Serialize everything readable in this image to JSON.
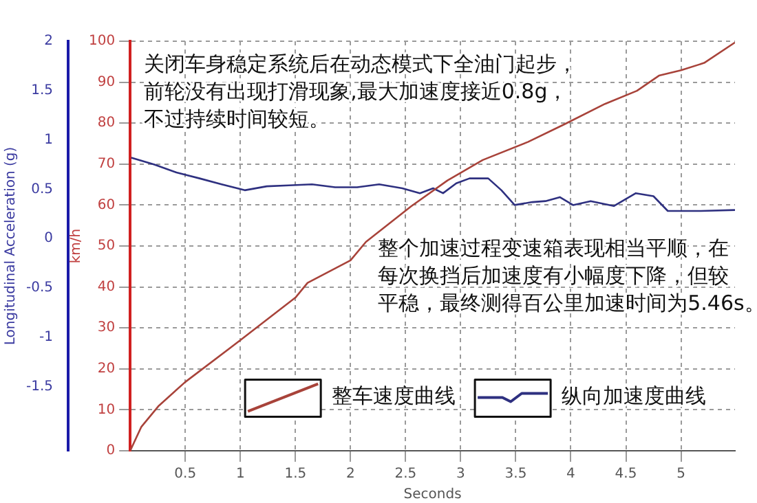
{
  "chart_data": {
    "type": "line",
    "xlabel": "Seconds",
    "ylabel": "km/h",
    "y2label": "Longitudinal Acceleration (g)",
    "annotations": [
      "关闭车身稳定系统后在动态模式下全油门起步，前轮没有出现打滑现象,最大加速度接近0.8g，不过持续时间较短。",
      "整个加速过程变速箱表现相当平顺，在每次换挡后加速度有小幅度下降，但较平稳，最终测得百公里加速时间为5.46s。"
    ],
    "series": [
      {
        "name": "整车速度曲线",
        "color": "#a8433a",
        "x": [
          0,
          0.1,
          0.26,
          0.5,
          1.0,
          1.5,
          1.61,
          2.0,
          2.14,
          2.55,
          2.88,
          3.2,
          3.61,
          3.94,
          4.31,
          4.6,
          4.8,
          5.0,
          5.21,
          5.49
        ],
        "values": [
          0,
          5.8,
          11,
          16.8,
          27,
          37.4,
          41,
          46.5,
          51,
          59.7,
          66,
          71,
          75.4,
          79.7,
          84.7,
          87.9,
          91.6,
          92.9,
          94.7,
          99.7
        ]
      },
      {
        "name": "纵向加速度曲线",
        "color": "#2e3080",
        "axis": "y2",
        "x": [
          0.01,
          0.22,
          0.42,
          0.63,
          0.83,
          1.04,
          1.24,
          1.44,
          1.65,
          1.86,
          2.06,
          2.26,
          2.47,
          2.63,
          2.75,
          2.84,
          2.96,
          3.08,
          3.25,
          3.37,
          3.49,
          3.65,
          3.77,
          3.9,
          4.02,
          4.18,
          4.39,
          4.59,
          4.75,
          4.88,
          5.18,
          5.49
        ],
        "values": [
          0.82,
          0.75,
          0.67,
          0.61,
          0.55,
          0.49,
          0.53,
          0.54,
          0.55,
          0.52,
          0.52,
          0.55,
          0.51,
          0.46,
          0.51,
          0.46,
          0.56,
          0.61,
          0.61,
          0.49,
          0.34,
          0.37,
          0.38,
          0.42,
          0.34,
          0.38,
          0.33,
          0.46,
          0.43,
          0.28,
          0.28,
          0.29
        ]
      }
    ],
    "xlim": [
      0,
      5.49
    ],
    "xticks": [
      0.5,
      1,
      1.5,
      2,
      2.5,
      3,
      3.5,
      4,
      4.5,
      5
    ],
    "ylim": [
      0,
      100
    ],
    "yticks": [
      0,
      10,
      20,
      30,
      40,
      50,
      60,
      70,
      80,
      90,
      100
    ],
    "y2lim": [
      -2.15,
      2
    ],
    "y2ticks": [
      -1.5,
      -1,
      -0.5,
      0,
      0.5,
      1,
      1.5,
      2
    ],
    "grid": true,
    "legend": "bottom",
    "marker": "none",
    "line_style": "solid"
  }
}
